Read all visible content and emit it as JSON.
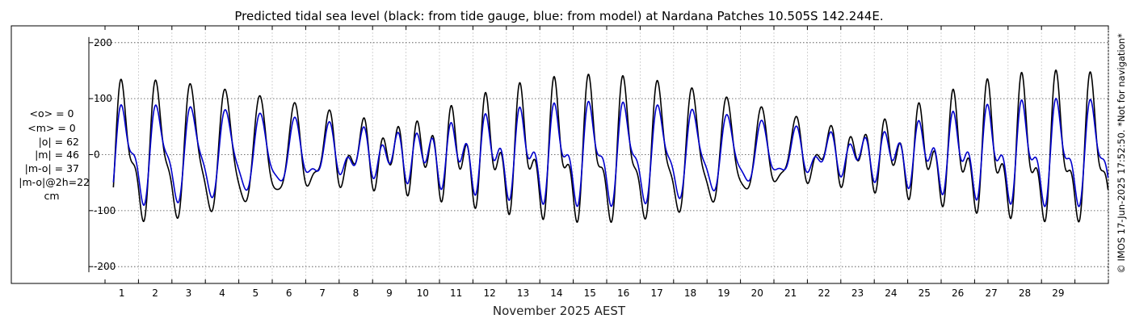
{
  "chart_data": {
    "type": "line",
    "title": "Predicted tidal sea level (black: from tide gauge, blue: from model) at Nardana Patches 10.505S 142.244E.",
    "xlabel": "November 2025 AEST",
    "ylabel": "",
    "xlim": [
      0,
      30
    ],
    "ylim": [
      -230,
      230
    ],
    "yticks": [
      200,
      100,
      0,
      -100,
      -200
    ],
    "ytick_labels": [
      "200",
      "100",
      "0",
      "-100",
      "-200"
    ],
    "xticks": [
      1,
      2,
      3,
      4,
      5,
      6,
      7,
      8,
      9,
      10,
      11,
      12,
      13,
      14,
      15,
      16,
      17,
      18,
      19,
      20,
      21,
      22,
      23,
      24,
      25,
      26,
      27,
      28,
      29
    ],
    "xtick_labels": [
      "1",
      "2",
      "3",
      "4",
      "5",
      "6",
      "7",
      "8",
      "9",
      "10",
      "11",
      "12",
      "13",
      "14",
      "15",
      "16",
      "17",
      "18",
      "19",
      "20",
      "21",
      "22",
      "23",
      "24",
      "25",
      "26",
      "27",
      "28",
      "29"
    ],
    "grid": true,
    "series": [
      {
        "name": "tide gauge",
        "color": "#000000",
        "model": {
          "k1": 66,
          "o1": 40,
          "m2": 38,
          "s2": 20,
          "phase_k1": 2.6,
          "phase_m2": 0.5,
          "start_day": 0.25,
          "end_day": 30
        }
      },
      {
        "name": "model",
        "color": "#0000cc",
        "model": {
          "k1": 46,
          "o1": 28,
          "m2": 28,
          "s2": 13,
          "phase_k1": 2.45,
          "phase_m2": 0.6,
          "start_day": 0.25,
          "end_day": 30
        }
      }
    ]
  },
  "stats": {
    "mean_obs": "<o> = 0",
    "mean_model": "<m> = 0",
    "abs_obs": "|o| = 62",
    "abs_model": "|m| = 46",
    "abs_diff": "|m-o| = 37",
    "abs_diff_2h": "|m-o|@2h=22",
    "unit": "cm"
  },
  "side_note": "© IMOS 17-Jun-2025 17:52:50. *Not for navigation*"
}
